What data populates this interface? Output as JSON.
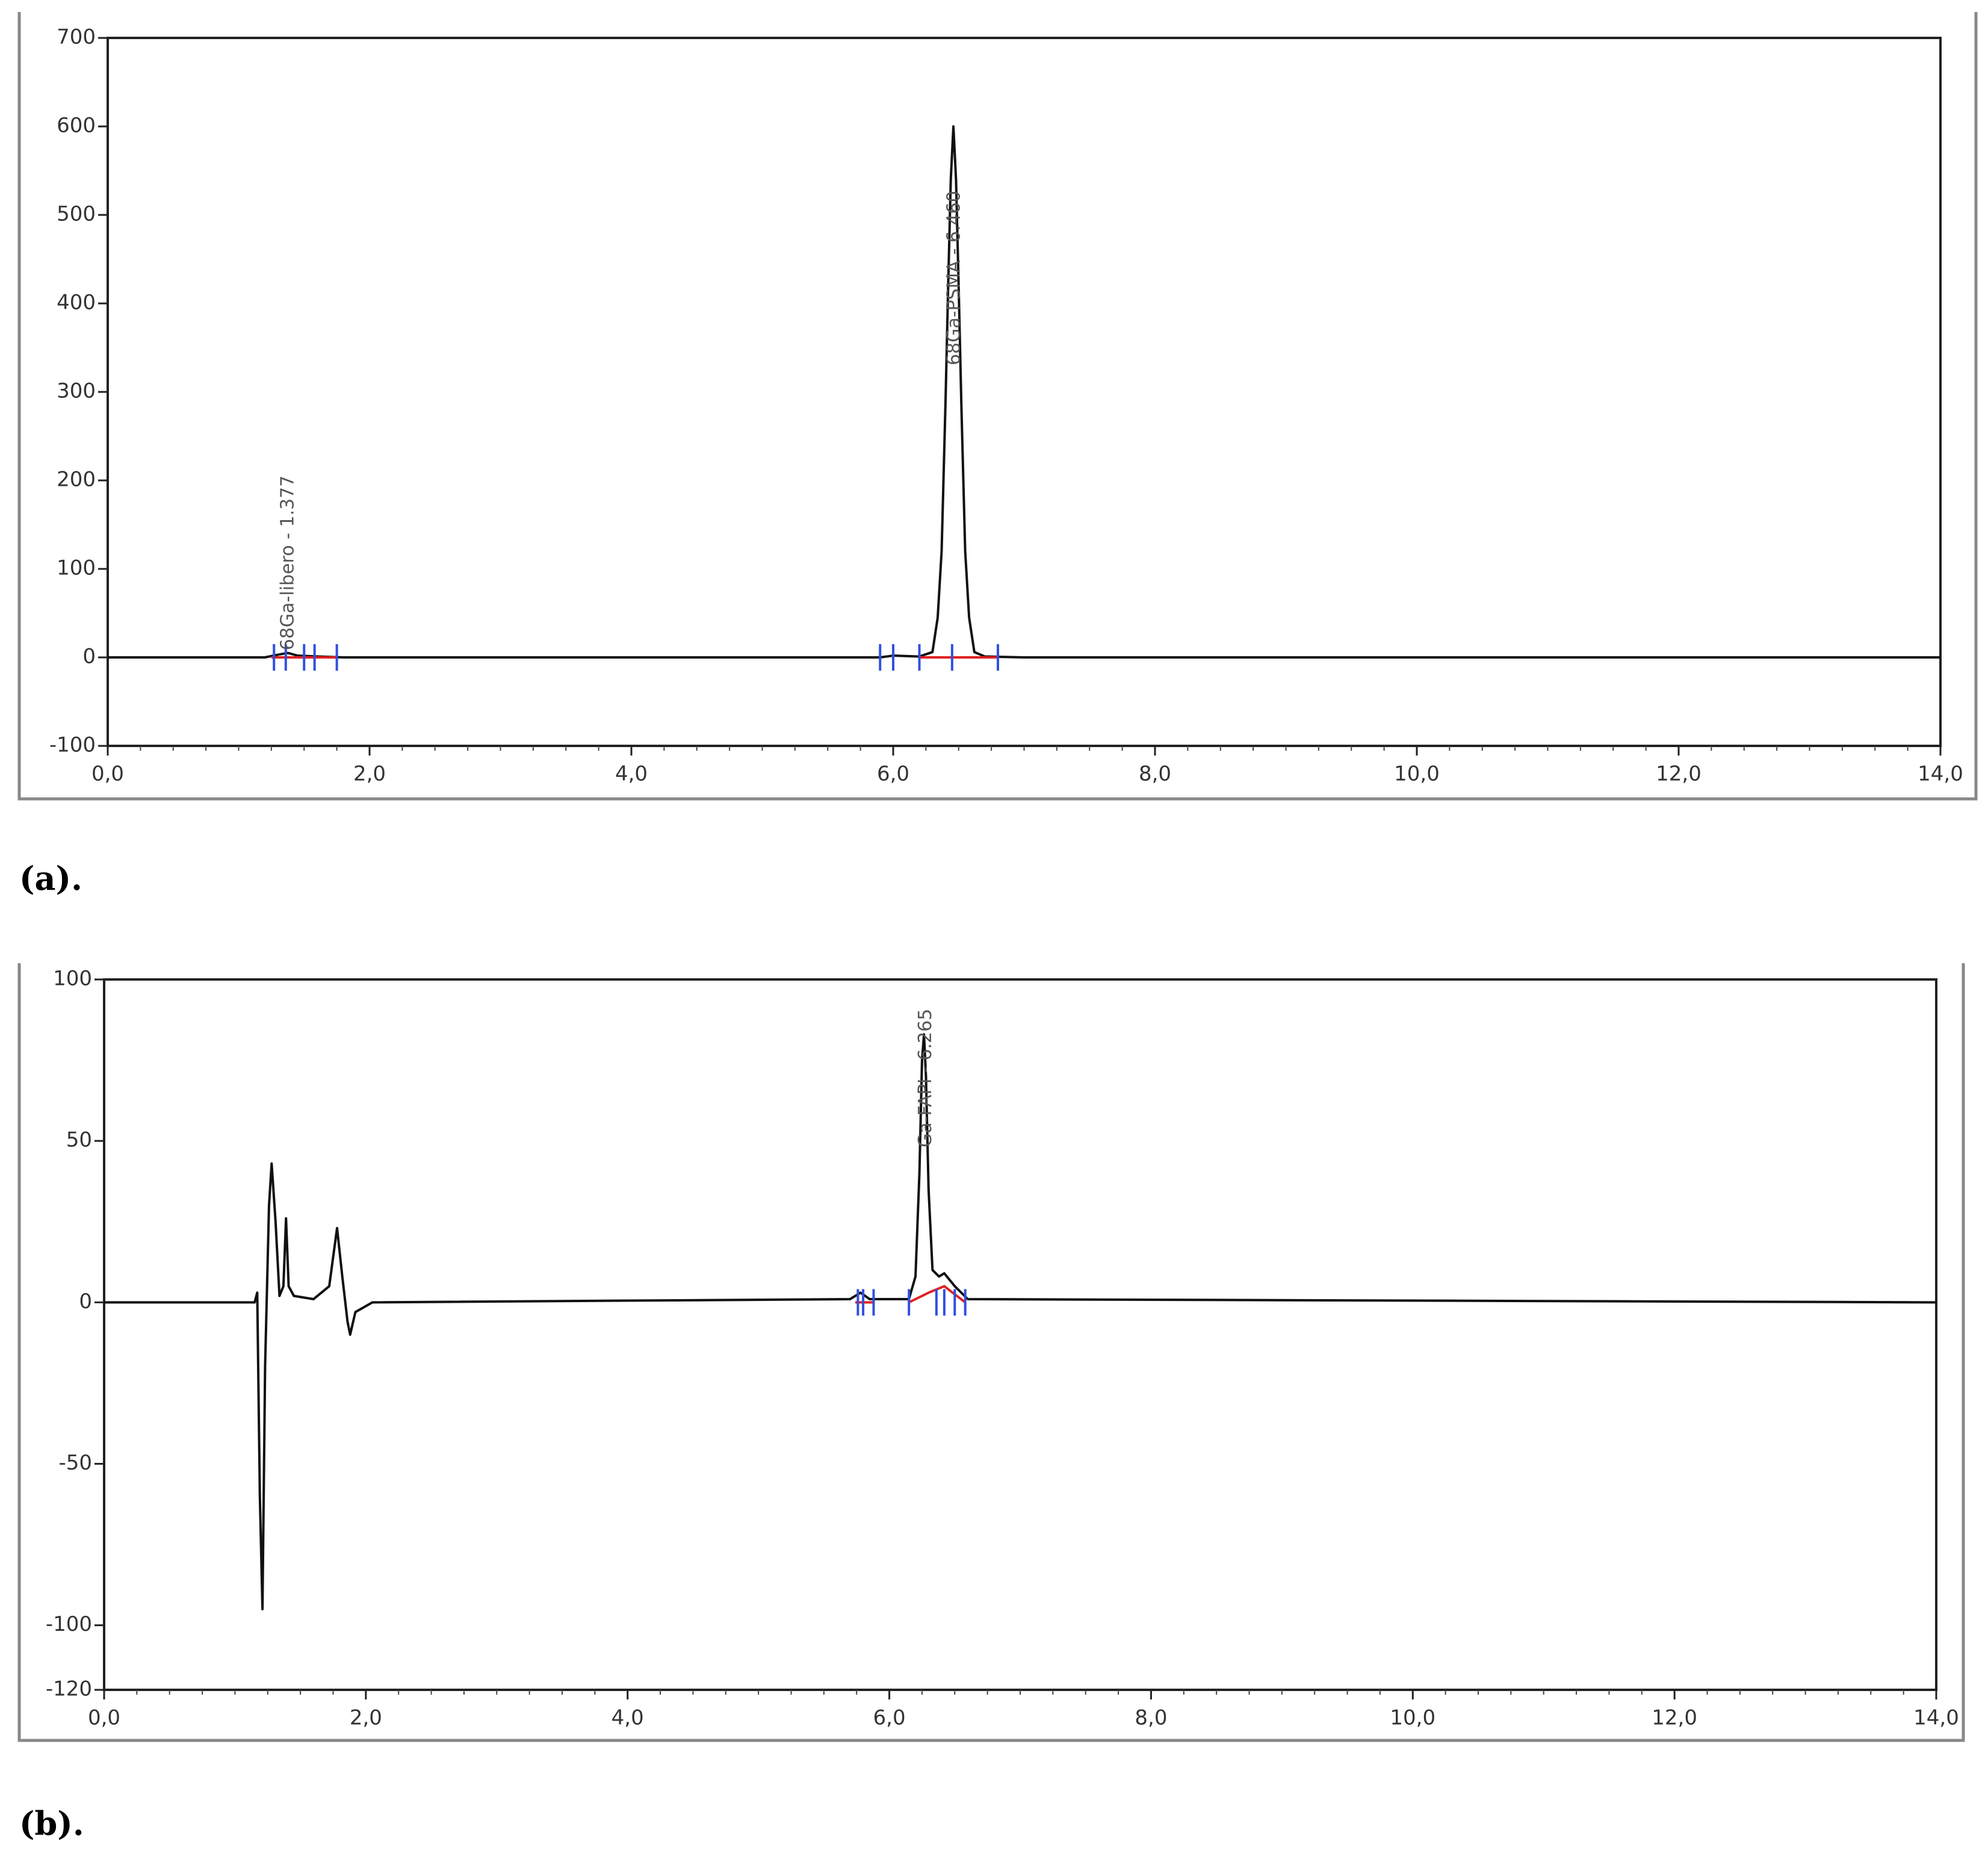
{
  "chart_data": [
    {
      "type": "line",
      "caption": "(a).",
      "color": "#111111",
      "annotations": [
        "68Ga-libero - 1.377",
        "68Ga-PSMA - 6.460"
      ],
      "x": [
        0,
        1.2,
        1.3,
        1.377,
        1.45,
        1.6,
        1.8,
        5.9,
        6.0,
        6.2,
        6.3,
        6.34,
        6.37,
        6.4,
        6.42,
        6.44,
        6.46,
        6.48,
        6.5,
        6.52,
        6.55,
        6.58,
        6.62,
        6.7,
        7.0,
        14.0
      ],
      "values": [
        0,
        0,
        3,
        5,
        2,
        1,
        0,
        0,
        2,
        1,
        6,
        45,
        120,
        290,
        420,
        540,
        600,
        540,
        420,
        290,
        120,
        45,
        6,
        1,
        0,
        0
      ],
      "xlim": [
        0,
        14
      ],
      "ylim": [
        -100,
        700
      ],
      "xticks": [
        {
          "value": 0,
          "label": "0,0"
        },
        {
          "value": 2,
          "label": "2,0"
        },
        {
          "value": 4,
          "label": "4,0"
        },
        {
          "value": 6,
          "label": "6,0"
        },
        {
          "value": 8,
          "label": "8,0"
        },
        {
          "value": 10,
          "label": "10,0"
        },
        {
          "value": 12,
          "label": "12,0"
        },
        {
          "value": 14,
          "label": "14,0"
        }
      ],
      "yticks": [
        -100,
        0,
        100,
        200,
        300,
        400,
        500,
        600,
        700
      ]
    },
    {
      "type": "line",
      "caption": "(b).",
      "color": "#111111",
      "annotations": [
        "Ga-FAPI - 6.265"
      ],
      "x": [
        0,
        1.15,
        1.17,
        1.19,
        1.21,
        1.23,
        1.26,
        1.28,
        1.31,
        1.34,
        1.37,
        1.39,
        1.41,
        1.45,
        1.6,
        1.72,
        1.78,
        1.82,
        1.86,
        1.88,
        1.92,
        2.05,
        5.7,
        5.78,
        5.85,
        6.15,
        6.2,
        6.23,
        6.25,
        6.265,
        6.28,
        6.3,
        6.33,
        6.38,
        6.42,
        6.5,
        6.6,
        14.0
      ],
      "values": [
        0,
        0,
        3,
        -60,
        -95,
        -20,
        30,
        43,
        25,
        2,
        5,
        26,
        5,
        2,
        1,
        5,
        23,
        8,
        -6,
        -10,
        -3,
        0,
        1,
        3,
        1,
        1,
        8,
        40,
        75,
        83,
        70,
        35,
        10,
        8,
        9,
        5,
        1,
        0
      ],
      "xlim": [
        0,
        14
      ],
      "ylim": [
        -120,
        100
      ],
      "xticks": [
        {
          "value": 0,
          "label": "0,0"
        },
        {
          "value": 2,
          "label": "2,0"
        },
        {
          "value": 4,
          "label": "4,0"
        },
        {
          "value": 6,
          "label": "6,0"
        },
        {
          "value": 8,
          "label": "8,0"
        },
        {
          "value": 10,
          "label": "10,0"
        },
        {
          "value": 12,
          "label": "12,0"
        },
        {
          "value": 14,
          "label": "14,0"
        }
      ],
      "yticks": [
        -120,
        -100,
        -50,
        0,
        50,
        100
      ]
    }
  ]
}
